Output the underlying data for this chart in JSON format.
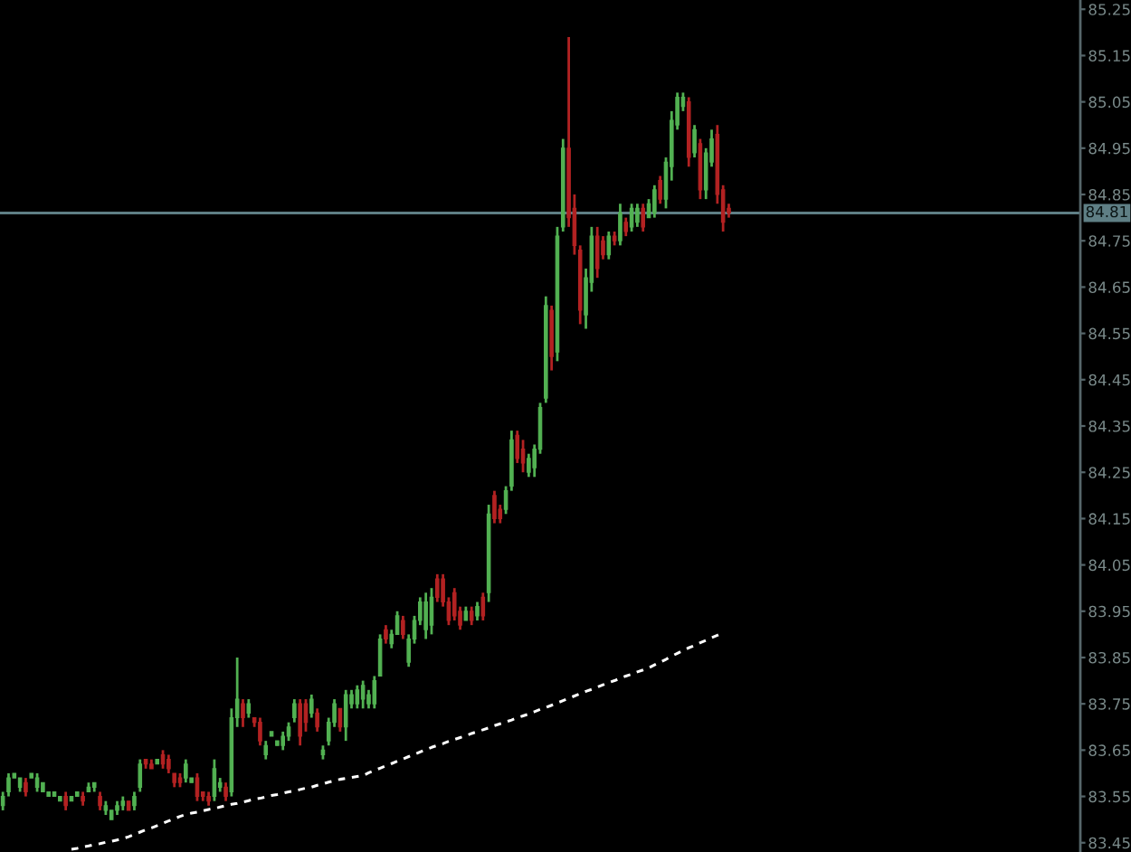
{
  "chart_data": {
    "type": "candlestick",
    "categories": [
      null,
      null,
      null,
      null,
      null,
      null,
      null,
      null,
      null,
      null,
      null,
      null,
      null,
      null,
      null,
      null,
      null,
      null,
      null,
      null,
      null,
      null,
      null,
      null,
      null,
      null,
      null,
      null,
      null,
      null,
      null,
      null,
      null,
      null,
      null,
      null,
      null,
      null,
      null,
      null,
      null,
      null,
      null,
      null,
      null,
      null,
      null,
      null,
      null,
      null,
      null,
      null,
      null,
      null,
      null,
      null,
      null,
      null,
      null,
      null,
      null,
      null,
      null,
      null,
      null,
      null,
      null,
      null,
      null,
      null,
      null,
      null,
      null,
      null,
      null,
      null,
      null,
      null,
      null,
      null,
      null,
      null,
      null,
      null,
      null,
      null,
      null,
      null,
      null,
      null,
      null,
      null,
      null,
      null,
      null,
      null,
      null,
      null,
      null,
      null,
      null,
      null,
      null,
      null,
      null,
      null,
      null,
      null,
      null,
      null,
      null,
      null,
      null,
      null,
      null,
      null,
      null,
      null,
      null,
      null,
      null,
      null,
      null,
      null,
      null,
      null,
      null,
      null,
      null,
      null,
      null,
      null,
      null,
      null,
      null,
      null,
      null,
      null,
      null,
      null,
      null,
      null,
      null,
      null,
      null,
      null,
      null,
      null,
      null,
      null,
      null,
      null,
      null,
      null,
      null,
      null,
      null,
      null,
      null,
      null,
      null,
      null,
      null,
      null,
      null,
      null,
      null,
      null,
      null,
      null,
      null,
      null,
      null,
      null,
      null,
      null,
      null,
      null,
      null,
      null,
      null,
      null,
      null,
      null,
      null,
      null,
      null,
      null,
      null
    ],
    "ohlc": [
      [
        83.53,
        83.56,
        83.52,
        83.55
      ],
      [
        83.56,
        83.6,
        83.55,
        83.59
      ],
      [
        83.59,
        83.6,
        83.59,
        83.6
      ],
      [
        83.57,
        83.59,
        83.56,
        83.59
      ],
      [
        83.58,
        83.59,
        83.55,
        83.56
      ],
      [
        83.59,
        83.6,
        83.59,
        83.6
      ],
      [
        83.57,
        83.6,
        83.56,
        83.59
      ],
      [
        83.56,
        83.58,
        83.56,
        83.58
      ],
      [
        83.55,
        83.56,
        83.55,
        83.56
      ],
      [
        83.55,
        83.56,
        83.55,
        83.56
      ],
      [
        83.54,
        83.55,
        83.54,
        83.55
      ],
      [
        83.55,
        83.56,
        83.52,
        83.53
      ],
      [
        83.54,
        83.55,
        83.54,
        83.55
      ],
      [
        83.55,
        83.56,
        83.55,
        83.56
      ],
      [
        83.55,
        83.56,
        83.53,
        83.54
      ],
      [
        83.56,
        83.58,
        83.56,
        83.57
      ],
      [
        83.57,
        83.58,
        83.56,
        83.58
      ],
      [
        83.55,
        83.56,
        83.52,
        83.53
      ],
      [
        83.52,
        83.54,
        83.51,
        83.53
      ],
      [
        83.5,
        83.52,
        83.5,
        83.52
      ],
      [
        83.52,
        83.54,
        83.51,
        83.53
      ],
      [
        83.53,
        83.55,
        83.52,
        83.54
      ],
      [
        83.54,
        83.54,
        83.52,
        83.52
      ],
      [
        83.53,
        83.56,
        83.52,
        83.55
      ],
      [
        83.57,
        83.63,
        83.56,
        83.62
      ],
      [
        83.63,
        83.63,
        83.61,
        83.62
      ],
      [
        83.62,
        83.63,
        83.61,
        83.61
      ],
      [
        83.62,
        83.63,
        83.62,
        83.63
      ],
      [
        83.64,
        83.65,
        83.61,
        83.62
      ],
      [
        83.63,
        83.64,
        83.6,
        83.61
      ],
      [
        83.6,
        83.6,
        83.57,
        83.58
      ],
      [
        83.59,
        83.6,
        83.57,
        83.58
      ],
      [
        83.59,
        83.63,
        83.58,
        83.62
      ],
      [
        83.58,
        83.59,
        83.58,
        83.59
      ],
      [
        83.59,
        83.6,
        83.54,
        83.55
      ],
      [
        83.56,
        83.56,
        83.54,
        83.55
      ],
      [
        83.55,
        83.56,
        83.53,
        83.54
      ],
      [
        83.55,
        83.63,
        83.54,
        83.61
      ],
      [
        83.57,
        83.59,
        83.56,
        83.58
      ],
      [
        83.57,
        83.58,
        83.54,
        83.55
      ],
      [
        83.56,
        83.74,
        83.55,
        83.72
      ],
      [
        83.72,
        83.85,
        83.7,
        83.76
      ],
      [
        83.75,
        83.76,
        83.7,
        83.72
      ],
      [
        83.73,
        83.76,
        83.72,
        83.75
      ],
      [
        83.72,
        83.72,
        83.7,
        83.71
      ],
      [
        83.71,
        83.72,
        83.66,
        83.67
      ],
      [
        83.64,
        83.67,
        83.63,
        83.66
      ],
      [
        83.68,
        83.69,
        83.68,
        83.69
      ],
      [
        83.66,
        83.67,
        83.66,
        83.67
      ],
      [
        83.66,
        83.69,
        83.65,
        83.68
      ],
      [
        83.68,
        83.71,
        83.67,
        83.7
      ],
      [
        83.72,
        83.76,
        83.71,
        83.75
      ],
      [
        83.75,
        83.76,
        83.66,
        83.68
      ],
      [
        83.75,
        83.76,
        83.69,
        83.71
      ],
      [
        83.73,
        83.77,
        83.72,
        83.76
      ],
      [
        83.73,
        83.74,
        83.69,
        83.7
      ],
      [
        83.64,
        83.66,
        83.63,
        83.65
      ],
      [
        83.67,
        83.72,
        83.66,
        83.71
      ],
      [
        83.71,
        83.76,
        83.7,
        83.75
      ],
      [
        83.74,
        83.74,
        83.69,
        83.7
      ],
      [
        83.7,
        83.78,
        83.67,
        83.77
      ],
      [
        83.75,
        83.78,
        83.74,
        83.77
      ],
      [
        83.75,
        83.79,
        83.74,
        83.78
      ],
      [
        83.76,
        83.8,
        83.74,
        83.79
      ],
      [
        83.75,
        83.78,
        83.74,
        83.77
      ],
      [
        83.75,
        83.81,
        83.74,
        83.8
      ],
      [
        83.81,
        83.9,
        83.81,
        83.89
      ],
      [
        83.91,
        83.92,
        83.88,
        83.89
      ],
      [
        83.88,
        83.91,
        83.87,
        83.9
      ],
      [
        83.9,
        83.95,
        83.9,
        83.94
      ],
      [
        83.93,
        83.94,
        83.89,
        83.9
      ],
      [
        83.84,
        83.9,
        83.83,
        83.89
      ],
      [
        83.89,
        83.94,
        83.88,
        83.93
      ],
      [
        83.93,
        83.98,
        83.92,
        83.97
      ],
      [
        83.91,
        83.99,
        83.89,
        83.97
      ],
      [
        83.92,
        84.0,
        83.9,
        83.98
      ],
      [
        84.02,
        84.03,
        83.97,
        83.98
      ],
      [
        84.02,
        84.03,
        83.96,
        83.97
      ],
      [
        83.97,
        83.98,
        83.92,
        83.93
      ],
      [
        83.99,
        84.0,
        83.93,
        83.94
      ],
      [
        83.95,
        83.96,
        83.91,
        83.92
      ],
      [
        83.93,
        83.96,
        83.93,
        83.95
      ],
      [
        83.95,
        83.96,
        83.92,
        83.93
      ],
      [
        83.94,
        83.97,
        83.93,
        83.96
      ],
      [
        83.98,
        83.99,
        83.93,
        83.94
      ],
      [
        83.99,
        84.18,
        83.97,
        84.16
      ],
      [
        84.2,
        84.21,
        84.14,
        84.15
      ],
      [
        84.17,
        84.18,
        84.14,
        84.15
      ],
      [
        84.17,
        84.22,
        84.16,
        84.21
      ],
      [
        84.22,
        84.34,
        84.21,
        84.32
      ],
      [
        84.33,
        84.34,
        84.27,
        84.28
      ],
      [
        84.3,
        84.32,
        84.25,
        84.27
      ],
      [
        84.25,
        84.29,
        84.24,
        84.28
      ],
      [
        84.26,
        84.31,
        84.24,
        84.3
      ],
      [
        84.3,
        84.4,
        84.29,
        84.39
      ],
      [
        84.41,
        84.63,
        84.4,
        84.61
      ],
      [
        84.6,
        84.61,
        84.47,
        84.5
      ],
      [
        84.51,
        84.78,
        84.49,
        84.76
      ],
      [
        84.78,
        84.97,
        84.77,
        84.95
      ],
      [
        84.95,
        85.19,
        84.78,
        84.8
      ],
      [
        84.82,
        84.85,
        84.72,
        84.74
      ],
      [
        84.73,
        84.74,
        84.57,
        84.6
      ],
      [
        84.59,
        84.69,
        84.56,
        84.67
      ],
      [
        84.66,
        84.78,
        84.64,
        84.76
      ],
      [
        84.76,
        84.78,
        84.67,
        84.69
      ],
      [
        84.75,
        84.76,
        84.71,
        84.72
      ],
      [
        84.72,
        84.77,
        84.71,
        84.76
      ],
      [
        84.76,
        84.77,
        84.74,
        84.75
      ],
      [
        84.75,
        84.83,
        84.74,
        84.81
      ],
      [
        84.79,
        84.8,
        84.76,
        84.77
      ],
      [
        84.78,
        84.83,
        84.77,
        84.82
      ],
      [
        84.79,
        84.83,
        84.78,
        84.82
      ],
      [
        84.82,
        84.83,
        84.77,
        84.78
      ],
      [
        84.8,
        84.84,
        84.8,
        84.83
      ],
      [
        84.81,
        84.87,
        84.8,
        84.86
      ],
      [
        84.88,
        84.89,
        84.83,
        84.84
      ],
      [
        84.84,
        84.93,
        84.82,
        84.92
      ],
      [
        84.91,
        85.03,
        84.88,
        85.01
      ],
      [
        85.0,
        85.07,
        84.99,
        85.06
      ],
      [
        85.04,
        85.07,
        85.03,
        85.06
      ],
      [
        85.05,
        85.06,
        84.91,
        84.93
      ],
      [
        84.94,
        85.0,
        84.93,
        84.99
      ],
      [
        84.96,
        84.97,
        84.84,
        84.86
      ],
      [
        84.86,
        84.95,
        84.84,
        84.94
      ],
      [
        84.92,
        84.99,
        84.91,
        84.97
      ],
      [
        84.98,
        85.0,
        84.83,
        84.85
      ],
      [
        84.86,
        84.87,
        84.77,
        84.79
      ],
      [
        84.82,
        84.83,
        84.8,
        84.81
      ],
      null,
      null,
      null,
      null,
      null,
      null,
      null,
      null,
      null,
      null,
      null,
      null,
      null,
      null,
      null,
      null,
      null,
      null,
      null,
      null,
      null,
      null,
      null,
      null,
      null,
      null,
      null,
      null,
      null,
      null,
      null,
      null,
      null,
      null,
      null,
      null,
      null,
      null,
      null,
      null,
      null,
      null,
      null,
      null,
      null,
      null,
      null,
      null,
      null,
      null,
      null,
      null,
      null,
      null,
      null,
      null,
      null,
      null,
      null,
      null,
      null
    ],
    "colors": [
      "#52b152",
      "#52b152",
      "#52b152",
      "#52b152",
      "#b22222",
      "#52b152",
      "#52b152",
      "#52b152",
      "#52b152",
      "#52b152",
      "#52b152",
      "#b22222",
      "#52b152",
      "#52b152",
      "#b22222",
      "#52b152",
      "#52b152",
      "#b22222",
      "#52b152",
      "#52b152",
      "#52b152",
      "#52b152",
      "#b22222",
      "#52b152",
      "#52b152",
      "#b22222",
      "#b22222",
      "#52b152",
      "#b22222",
      "#b22222",
      "#b22222",
      "#b22222",
      "#52b152",
      "#52b152",
      "#b22222",
      "#b22222",
      "#b22222",
      "#52b152",
      "#52b152",
      "#b22222",
      "#52b152",
      "#52b152",
      "#b22222",
      "#52b152",
      "#b22222",
      "#b22222",
      "#52b152",
      "#52b152",
      "#52b152",
      "#52b152",
      "#52b152",
      "#52b152",
      "#b22222",
      "#b22222",
      "#52b152",
      "#b22222",
      "#52b152",
      "#52b152",
      "#52b152",
      "#b22222",
      "#52b152",
      "#52b152",
      "#52b152",
      "#52b152",
      "#52b152",
      "#52b152",
      "#52b152",
      "#b22222",
      "#52b152",
      "#52b152",
      "#b22222",
      "#52b152",
      "#52b152",
      "#52b152",
      "#52b152",
      "#52b152",
      "#b22222",
      "#b22222",
      "#b22222",
      "#b22222",
      "#b22222",
      "#52b152",
      "#b22222",
      "#52b152",
      "#b22222",
      "#52b152",
      "#b22222",
      "#b22222",
      "#52b152",
      "#52b152",
      "#b22222",
      "#b22222",
      "#52b152",
      "#52b152",
      "#52b152",
      "#52b152",
      "#b22222",
      "#52b152",
      "#52b152",
      "#b22222",
      "#b22222",
      "#b22222",
      "#52b152",
      "#52b152",
      "#b22222",
      "#b22222",
      "#52b152",
      "#b22222",
      "#52b152",
      "#b22222",
      "#52b152",
      "#52b152",
      "#b22222",
      "#52b152",
      "#52b152",
      "#b22222",
      "#52b152",
      "#52b152",
      "#52b152",
      "#52b152",
      "#b22222",
      "#52b152",
      "#b22222",
      "#52b152",
      "#52b152",
      "#b22222",
      "#b22222",
      "#b22222",
      null,
      null,
      null,
      null,
      null,
      null,
      null,
      null,
      null,
      null,
      null,
      null,
      null,
      null,
      null,
      null,
      null,
      null,
      null,
      null,
      null,
      null,
      null,
      null,
      null,
      null,
      null,
      null,
      null,
      null,
      null,
      null,
      null,
      null,
      null,
      null,
      null,
      null,
      null,
      null,
      null,
      null,
      null,
      null,
      null,
      null,
      null,
      null,
      null,
      null,
      null,
      null,
      null,
      null,
      null,
      null,
      null,
      null,
      null,
      null,
      null
    ],
    "series": [
      {
        "type": "line",
        "color": "#ffffff",
        "line_style": "dashed",
        "values": [
          null,
          null,
          null,
          null,
          null,
          null,
          null,
          null,
          null,
          null,
          null,
          null,
          83.436,
          83.438,
          83.441,
          83.443,
          83.446,
          83.448,
          83.451,
          83.453,
          83.456,
          83.459,
          83.463,
          83.468,
          83.473,
          83.478,
          83.482,
          83.487,
          83.492,
          83.497,
          83.502,
          83.507,
          83.511,
          83.514,
          83.516,
          83.519,
          83.522,
          83.524,
          83.527,
          83.53,
          83.533,
          83.535,
          83.538,
          83.541,
          83.544,
          83.546,
          83.549,
          83.552,
          83.554,
          83.557,
          83.56,
          83.562,
          83.565,
          83.568,
          83.57,
          83.574,
          83.577,
          83.581,
          83.584,
          83.587,
          83.589,
          83.591,
          83.593,
          83.595,
          83.601,
          83.606,
          83.611,
          83.616,
          83.621,
          83.626,
          83.631,
          83.636,
          83.641,
          83.646,
          83.651,
          83.656,
          83.66,
          83.664,
          83.669,
          83.673,
          83.677,
          83.681,
          83.686,
          83.69,
          83.694,
          83.698,
          83.703,
          83.707,
          83.711,
          83.715,
          83.72,
          83.724,
          83.728,
          83.733,
          83.738,
          83.742,
          83.747,
          83.752,
          83.757,
          83.762,
          83.767,
          83.772,
          83.777,
          83.781,
          83.786,
          83.791,
          83.796,
          83.8,
          83.805,
          83.81,
          83.814,
          83.819,
          83.823,
          83.828,
          83.834,
          83.84,
          83.846,
          83.853,
          83.859,
          83.865,
          83.871,
          83.876,
          83.882,
          83.887,
          83.893,
          83.898,
          83.904,
          null,
          null,
          null,
          null,
          null,
          null,
          null,
          null,
          null,
          null,
          null,
          null,
          null,
          null,
          null,
          null,
          null,
          null,
          null,
          null,
          null,
          null,
          null,
          null,
          null,
          null,
          null,
          null,
          null,
          null,
          null,
          null,
          null,
          null,
          null,
          null,
          null,
          null,
          null,
          null,
          null,
          null,
          null,
          null,
          null,
          null,
          null,
          null,
          null,
          null,
          null,
          null,
          null,
          null,
          null,
          null,
          null,
          null,
          null,
          null,
          null,
          null
        ]
      }
    ],
    "ylim": [
      83.43,
      85.27
    ],
    "yticks": [
      83.45,
      83.55,
      83.65,
      83.75,
      83.85,
      83.95,
      84.05,
      84.15,
      84.25,
      84.35,
      84.45,
      84.55,
      84.65,
      84.75,
      84.85,
      84.95,
      85.05,
      85.15,
      85.25
    ],
    "tick_labels": "y",
    "ref_lines": [
      {
        "axis": "y",
        "value": 84.81,
        "label": "84.81",
        "color": "#5f7f85"
      }
    ]
  }
}
